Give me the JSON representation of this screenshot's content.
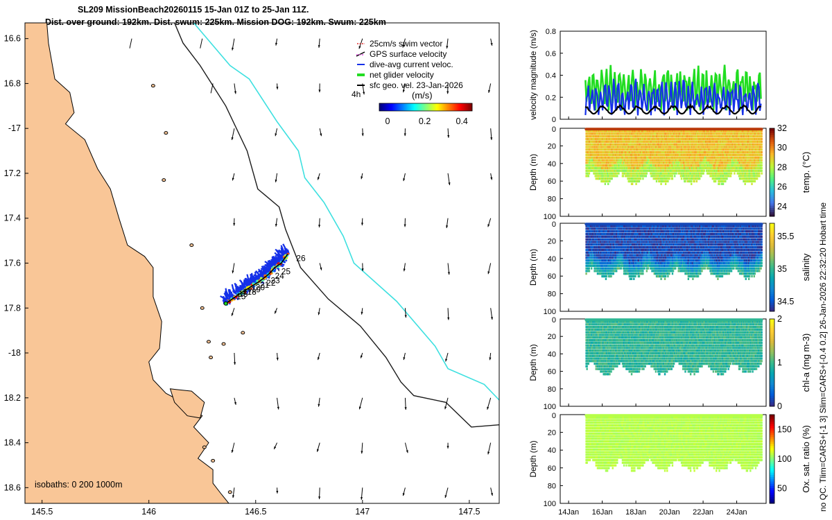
{
  "title": {
    "line1": "SL209 MissionBeach20260115 15-Jan 01Z to 25-Jan 11Z.",
    "line2": "Dist. over ground: 192km. Dist. swum: 225km. Mission DOG: 192km. Swum: 225km"
  },
  "side_note": "no QC. Tlim=CARS+[-1 3] Slim=CARS+[-0.4 0.2] 26-Jan-2026 22:32:20 Hobart time",
  "colors": {
    "land": "#f9c697",
    "isobath_200": "#1a1a1a",
    "isobath_1000": "#3ee0e0",
    "swim": "#e03030",
    "gps": "#e040e0",
    "dive_avg": "#1530e8",
    "net": "#22dd22",
    "geo": "#000000"
  },
  "chart_data": [
    {
      "type": "map",
      "xlim": [
        145.42,
        147.64
      ],
      "ylim": [
        -18.67,
        -16.53
      ],
      "xticks": [
        145.5,
        146,
        146.5,
        147,
        147.5
      ],
      "xtick_labels": [
        "145.5",
        "146",
        "146.5",
        "147",
        "147.5"
      ],
      "yticks": [
        -16.6,
        -16.8,
        -17,
        -17.2,
        -17.4,
        -17.6,
        -17.8,
        -18,
        -18.2,
        -18.4,
        -18.6
      ],
      "ytick_labels": [
        "16.6",
        "16.8",
        "-17",
        "17.2",
        "17.4",
        "17.6",
        "17.8",
        "-18",
        "18.2",
        "18.4",
        "18.6"
      ],
      "legend": [
        "25cm/s swim vector",
        "GPS surface velocity",
        "dive-avg current veloc.",
        "net glider velocity",
        "sfc geo. vel. 23-Jan-2026"
      ],
      "legend_annotation": "4h",
      "colorbar": {
        "label": "(m/s)",
        "range": [
          0,
          0.5
        ],
        "ticks": [
          "0",
          "0.2",
          "0.4"
        ]
      },
      "isobath_label": "isobaths: 0   200  1000m",
      "day_labels": [
        "26",
        "25",
        "24",
        "23",
        "22",
        "21",
        "20",
        "19",
        "18",
        "17",
        "16",
        "15"
      ],
      "geo_velocity_arrows_deg": [
        -90,
        -95,
        -100,
        -105,
        -110,
        -100,
        -85,
        -80,
        -90,
        -95
      ],
      "track": [
        {
          "lon": 146.36,
          "lat": -17.78
        },
        {
          "lon": 146.42,
          "lat": -17.74
        },
        {
          "lon": 146.47,
          "lat": -17.71
        },
        {
          "lon": 146.52,
          "lat": -17.68
        },
        {
          "lon": 146.56,
          "lat": -17.65
        },
        {
          "lon": 146.59,
          "lat": -17.62
        },
        {
          "lon": 146.62,
          "lat": -17.6
        },
        {
          "lon": 146.65,
          "lat": -17.56
        }
      ]
    },
    {
      "type": "line",
      "ylabel": "velocity magnitude (m/s)",
      "ylim": [
        0,
        0.8
      ],
      "yticks": [
        0,
        0.2,
        0.4,
        0.6,
        0.8
      ],
      "xlim": [
        13.5,
        25.75
      ],
      "series": [
        {
          "name": "net glider velocity",
          "amplitude": 0.42,
          "base": 0.08
        },
        {
          "name": "dive-avg current veloc.",
          "amplitude": 0.35,
          "base": 0.03
        },
        {
          "name": "sfc geo. vel.",
          "amplitude": 0.08,
          "base": 0.05
        }
      ],
      "data_start_day": 15.0,
      "data_end_day": 25.46
    },
    {
      "type": "heatmap",
      "ylabel": "Depth (m)",
      "clabel": "temp. (°C)",
      "ylim": [
        0,
        100
      ],
      "yticks": [
        20,
        40,
        60,
        80,
        100
      ],
      "clim": [
        23,
        32
      ],
      "cticks": [
        "24",
        "26",
        "28",
        "30",
        "32"
      ],
      "typical_value": 29.2,
      "spread": 1.3
    },
    {
      "type": "heatmap",
      "ylabel": "Depth (m)",
      "clabel": "salinity",
      "ylim": [
        0,
        100
      ],
      "yticks": [
        20,
        40,
        60,
        80,
        100
      ],
      "clim": [
        34.35,
        35.7
      ],
      "cticks": [
        "34.5",
        "35",
        "35.5"
      ],
      "typical_value": 34.45,
      "spread": 0.25
    },
    {
      "type": "heatmap",
      "ylabel": "Depth (m)",
      "clabel": "chl-a (mg m-3)",
      "ylim": [
        0,
        100
      ],
      "yticks": [
        20,
        40,
        60,
        80,
        100
      ],
      "clim": [
        0,
        2
      ],
      "cticks": [
        "0",
        "1",
        "2"
      ],
      "typical_value": 0.95,
      "spread": 0.35
    },
    {
      "type": "heatmap",
      "ylabel": "Depth (m)",
      "clabel": "Ox. sat. ratio (%)",
      "ylim": [
        0,
        100
      ],
      "yticks": [
        20,
        40,
        60,
        80,
        100
      ],
      "clim": [
        25,
        175
      ],
      "cticks": [
        "50",
        "100",
        "150"
      ],
      "typical_value": 108,
      "spread": 6,
      "xticks": [
        "14Jan",
        "16Jan",
        "18Jan",
        "20Jan",
        "22Jan",
        "24Jan"
      ]
    }
  ]
}
